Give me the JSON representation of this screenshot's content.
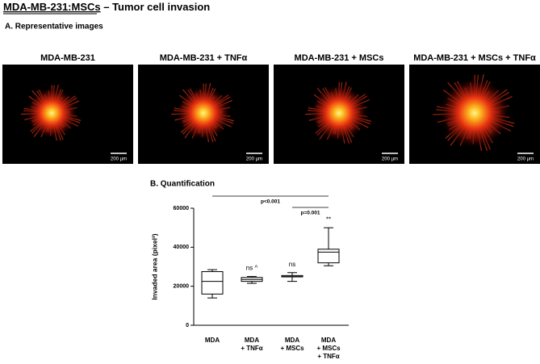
{
  "title_part1": "MDA-MB-231:MSCs",
  "title_part2": " – Tumor cell invasion",
  "section_a": "A. Representative images",
  "images": [
    {
      "label": "MDA-MB-231",
      "scale": "200 µm"
    },
    {
      "label": "MDA-MB-231 + TNFα",
      "scale": "200 µm"
    },
    {
      "label": "MDA-MB-231 + MSCs",
      "scale": "200 µm"
    },
    {
      "label": "MDA-MB-231 + MSCs + TNFα",
      "scale": "200 µm"
    }
  ],
  "chart_data": {
    "type": "box",
    "title": "B. Quantification",
    "y_label": "Invaded area (pixel²)",
    "categories": [
      "MDA",
      "MDA\n+ TNFα",
      "MDA\n+ MSCs",
      "MDA\n+ MSCs\n+ TNFα"
    ],
    "min": [
      14000,
      21500,
      22500,
      30500
    ],
    "q1": [
      16000,
      22500,
      24800,
      32000
    ],
    "median": [
      22500,
      23500,
      25000,
      37500
    ],
    "q3": [
      27500,
      24500,
      25500,
      39000
    ],
    "max": [
      28500,
      25000,
      27000,
      50000
    ],
    "significance": [
      null,
      "ns ^",
      "ns",
      "**"
    ],
    "p_values": [
      "p<0.001",
      "p=0.001"
    ],
    "ylim": [
      0,
      60000
    ],
    "yticks": [
      0,
      20000,
      40000,
      60000
    ]
  }
}
